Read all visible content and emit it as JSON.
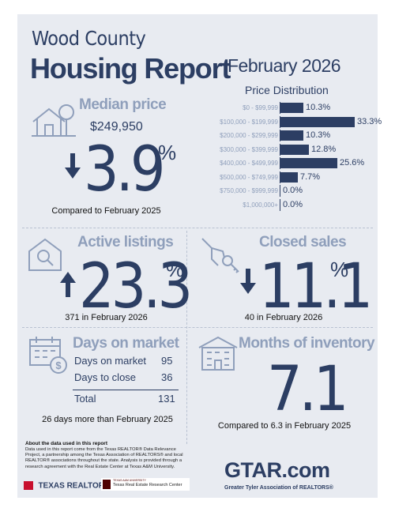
{
  "header": {
    "county": "Wood County",
    "report": "Housing Report",
    "month": "February 2026"
  },
  "price_distribution": {
    "title": "Price Distribution",
    "rows": [
      {
        "label": "$0 - $99,999",
        "value": 10.3,
        "display": "10.3%"
      },
      {
        "label": "$100,000 - $199,999",
        "value": 33.3,
        "display": "33.3%"
      },
      {
        "label": "$200,000 - $299,999",
        "value": 10.3,
        "display": "10.3%"
      },
      {
        "label": "$300,000 - $399,999",
        "value": 12.8,
        "display": "12.8%"
      },
      {
        "label": "$400,000 - $499,999",
        "value": 25.6,
        "display": "25.6%"
      },
      {
        "label": "$500,000 - $749,999",
        "value": 7.7,
        "display": "7.7%"
      },
      {
        "label": "$750,000 - $999,999",
        "value": 0.0,
        "display": "0.0%"
      },
      {
        "label": "$1,000,000+",
        "value": 0.0,
        "display": "0.0%"
      }
    ]
  },
  "median_price": {
    "title": "Median price",
    "value": "$249,950",
    "change": "3.9",
    "pct": "%",
    "direction": "down",
    "caption": "Compared to February 2025",
    "icon": "house-tree-icon"
  },
  "active_listings": {
    "title": "Active listings",
    "change": "23.3",
    "pct": "%",
    "direction": "up",
    "caption": "371 in February 2026",
    "icon": "house-search-icon"
  },
  "closed_sales": {
    "title": "Closed sales",
    "change": "11.1",
    "pct": "%",
    "direction": "down",
    "caption": "40 in February 2026",
    "icon": "hand-keys-icon"
  },
  "days_on_market": {
    "title": "Days on market",
    "rows": [
      {
        "label": "Days on market",
        "value": "95"
      },
      {
        "label": "Days to close",
        "value": "36"
      }
    ],
    "total_label": "Total",
    "total_value": "131",
    "caption": "26 days more than February 2025",
    "icon": "calendar-dollar-icon"
  },
  "months_inventory": {
    "title": "Months of inventory",
    "value": "7.1",
    "caption": "Compared to 6.3 in February 2025",
    "icon": "building-icon"
  },
  "footer": {
    "about_title": "About the data used in this report",
    "about_text": "Data used in this report come from the Texas REALTOR® Data Relevance Project, a partnership among the Texas Association of REALTORS® and local REALTOR® associations throughout the state. Analysis is provided through a research agreement with the Real Estate Center at Texas A&M University.",
    "texas_realtors": "TEXAS REALTORS",
    "tamu_small": "TEXAS A&M UNIVERSITY",
    "tamu_center": "Texas Real Estate Research Center",
    "gtar_logo": "GTAR.com",
    "gtar_name": "Greater Tyler Association of REALTORS®"
  },
  "colors": {
    "navy": "#2c3e63",
    "muted": "#8f9fbb",
    "red": "#c8102e",
    "maroon": "#500000"
  }
}
